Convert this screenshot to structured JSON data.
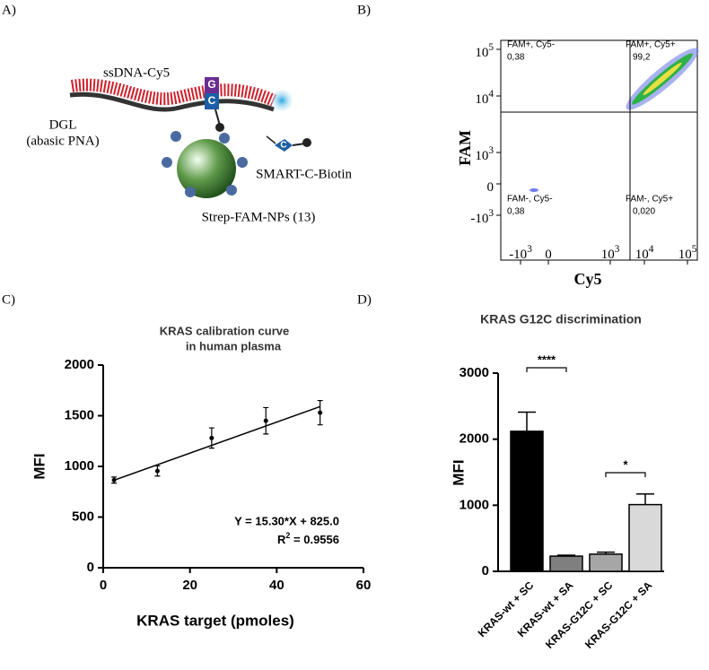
{
  "panels": {
    "a": {
      "label": "A)",
      "ssdna": "ssDNA-Cy5",
      "dgl": [
        "DGL",
        "(abasic PNA)"
      ],
      "bases": [
        "G",
        "C"
      ],
      "smart_base": "C",
      "smart": "SMART-C-Biotin",
      "nps": "Strep-FAM-NPs (13)"
    },
    "b": {
      "label": "B)",
      "x_label": "Cy5",
      "y_label": "FAM",
      "xticks": [
        {
          "base": "-10",
          "exp": "3"
        },
        {
          "base": "0"
        },
        {
          "base": "10",
          "exp": "3"
        },
        {
          "base": "10",
          "exp": "4"
        },
        {
          "base": "10",
          "exp": "5"
        }
      ],
      "yticks": [
        {
          "base": "10",
          "exp": "5"
        },
        {
          "base": "10",
          "exp": "4"
        },
        {
          "base": "10",
          "exp": "3"
        },
        {
          "base": "0"
        },
        {
          "base": "-10",
          "exp": "3"
        }
      ],
      "quadrants": [
        {
          "name": "FAM+, Cy5-",
          "value": "0,38"
        },
        {
          "name": "FAM+, Cy5+",
          "value": "99,2"
        },
        {
          "name": "FAM-, Cy5-",
          "value": "0,38"
        },
        {
          "name": "FAM-, Cy5+",
          "value": "0,020"
        }
      ]
    }
  },
  "chart_data": [
    {
      "panel": "C)",
      "type": "scatter",
      "title": [
        "KRAS calibration curve",
        "in human plasma"
      ],
      "x_label": "KRAS target (pmoles)",
      "y_label": "MFI",
      "x": [
        2.5,
        12.5,
        25,
        37.5,
        50
      ],
      "values": [
        865,
        955,
        1280,
        1450,
        1530
      ],
      "errors": [
        30,
        50,
        100,
        130,
        120
      ],
      "color": "#000000",
      "xlim": [
        0,
        60
      ],
      "xticks": [
        0,
        20,
        40,
        60
      ],
      "ylim": [
        0,
        2000
      ],
      "yticks": [
        0,
        500,
        1000,
        1500,
        2000
      ],
      "fit": {
        "label": "Y = 15.30*X + 825.0",
        "slope": 15.3,
        "intercept": 825,
        "r2": {
          "base": "R",
          "exp": "2",
          "text": " = 0.9556"
        }
      }
    },
    {
      "panel": "D)",
      "type": "bar",
      "title": "KRAS G12C discrimination",
      "y_label": "MFI",
      "categories": [
        "KRAS-wt + SC",
        "KRAS-wt + SA",
        "KRAS-G12C + SC",
        "KRAS-G12C + SA"
      ],
      "values": [
        2120,
        230,
        260,
        1010
      ],
      "errors": [
        290,
        15,
        30,
        160
      ],
      "colors": [
        "#000000",
        "#7f7f7f",
        "#a6a6a6",
        "#d9d9d9"
      ],
      "ylim": [
        0,
        3000
      ],
      "yticks": [
        0,
        1000,
        2000,
        3000
      ],
      "annotations": [
        "****",
        "*"
      ]
    }
  ]
}
